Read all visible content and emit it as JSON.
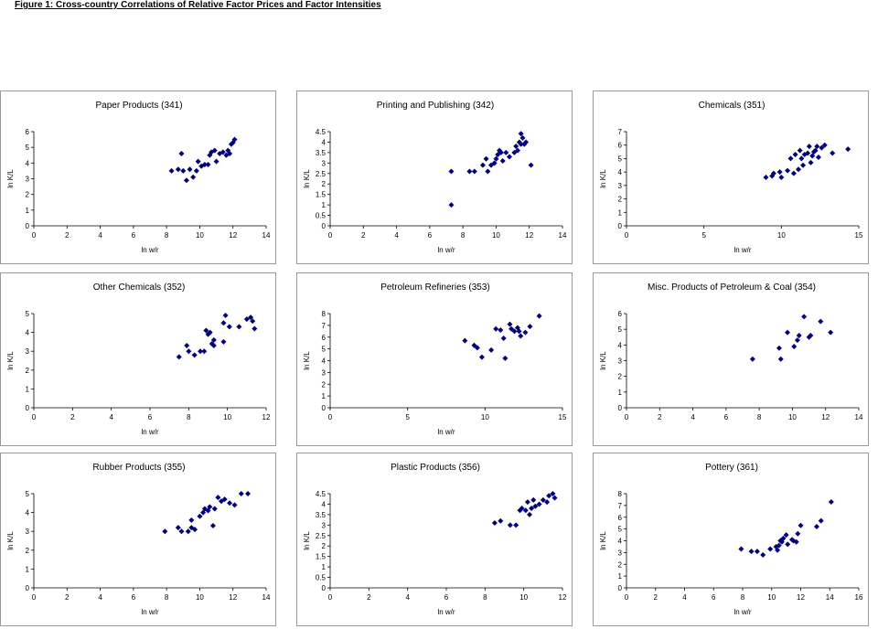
{
  "figure_title": "Figure 1: Cross-country Correlations of Relative Factor Prices and Factor Intensities",
  "marker_color": "#000080",
  "chart_data": [
    {
      "type": "scatter",
      "title": "Paper Products (341)",
      "xlabel": "ln w/r",
      "ylabel": "ln K/L",
      "xlim": [
        0,
        14
      ],
      "ylim": [
        0,
        6
      ],
      "xticks": [
        "0",
        "2",
        "4",
        "6",
        "8",
        "10",
        "12",
        "14"
      ],
      "yticks": [
        "0",
        "1",
        "2",
        "3",
        "4",
        "5",
        "6"
      ],
      "grid": false,
      "legend": "none",
      "points": [
        [
          8.3,
          3.5
        ],
        [
          8.7,
          3.6
        ],
        [
          9.0,
          3.5
        ],
        [
          8.9,
          4.6
        ],
        [
          9.2,
          2.9
        ],
        [
          9.4,
          3.6
        ],
        [
          9.6,
          3.1
        ],
        [
          9.8,
          3.5
        ],
        [
          9.9,
          4.1
        ],
        [
          10.1,
          3.8
        ],
        [
          10.3,
          3.9
        ],
        [
          10.5,
          3.9
        ],
        [
          10.6,
          4.5
        ],
        [
          10.7,
          4.7
        ],
        [
          10.9,
          4.8
        ],
        [
          11.0,
          4.1
        ],
        [
          11.2,
          4.6
        ],
        [
          11.4,
          4.7
        ],
        [
          11.6,
          4.5
        ],
        [
          11.8,
          4.6
        ],
        [
          11.7,
          4.8
        ],
        [
          11.9,
          5.2
        ],
        [
          12.0,
          5.3
        ],
        [
          12.1,
          5.5
        ]
      ]
    },
    {
      "type": "scatter",
      "title": "Printing and Publishing (342)",
      "xlabel": "ln w/r",
      "ylabel": "ln K/L",
      "xlim": [
        0,
        14
      ],
      "ylim": [
        0,
        4.5
      ],
      "xticks": [
        "0",
        "2",
        "4",
        "6",
        "8",
        "10",
        "12",
        "14"
      ],
      "yticks": [
        "0",
        "0.5",
        "1",
        "1.5",
        "2",
        "2.5",
        "3",
        "3.5",
        "4",
        "4.5"
      ],
      "grid": false,
      "legend": "none",
      "points": [
        [
          7.3,
          1.0
        ],
        [
          7.3,
          2.6
        ],
        [
          8.4,
          2.6
        ],
        [
          8.7,
          2.6
        ],
        [
          9.2,
          2.9
        ],
        [
          9.4,
          3.2
        ],
        [
          9.5,
          2.6
        ],
        [
          9.7,
          2.9
        ],
        [
          9.9,
          3.0
        ],
        [
          10.0,
          3.2
        ],
        [
          10.1,
          3.4
        ],
        [
          10.2,
          3.6
        ],
        [
          10.3,
          3.5
        ],
        [
          10.4,
          3.1
        ],
        [
          10.6,
          3.5
        ],
        [
          10.8,
          3.3
        ],
        [
          11.1,
          3.5
        ],
        [
          11.2,
          3.8
        ],
        [
          11.3,
          3.6
        ],
        [
          11.4,
          4.0
        ],
        [
          11.5,
          3.9
        ],
        [
          11.5,
          4.4
        ],
        [
          11.6,
          4.2
        ],
        [
          11.7,
          3.9
        ],
        [
          11.8,
          4.0
        ],
        [
          12.1,
          2.9
        ]
      ]
    },
    {
      "type": "scatter",
      "title": "Chemicals (351)",
      "xlabel": "ln w/r",
      "ylabel": "ln K/L",
      "xlim": [
        0,
        15
      ],
      "ylim": [
        0,
        7
      ],
      "xticks": [
        "0",
        "5",
        "10",
        "15"
      ],
      "yticks": [
        "0",
        "1",
        "2",
        "3",
        "4",
        "5",
        "6",
        "7"
      ],
      "grid": false,
      "legend": "none",
      "points": [
        [
          9.0,
          3.6
        ],
        [
          9.4,
          3.7
        ],
        [
          9.5,
          3.9
        ],
        [
          9.9,
          4.0
        ],
        [
          10.0,
          3.6
        ],
        [
          10.4,
          4.1
        ],
        [
          10.6,
          5.0
        ],
        [
          10.8,
          3.9
        ],
        [
          10.9,
          5.3
        ],
        [
          11.1,
          4.2
        ],
        [
          11.2,
          5.6
        ],
        [
          11.3,
          5.0
        ],
        [
          11.4,
          4.5
        ],
        [
          11.5,
          5.3
        ],
        [
          11.7,
          5.4
        ],
        [
          11.8,
          5.9
        ],
        [
          11.9,
          4.7
        ],
        [
          12.0,
          5.2
        ],
        [
          12.1,
          5.5
        ],
        [
          12.2,
          5.6
        ],
        [
          12.3,
          5.9
        ],
        [
          12.4,
          5.1
        ],
        [
          12.6,
          5.8
        ],
        [
          12.8,
          6.0
        ],
        [
          13.3,
          5.4
        ],
        [
          14.3,
          5.7
        ]
      ]
    },
    {
      "type": "scatter",
      "title": "Other Chemicals (352)",
      "xlabel": "ln w/r",
      "ylabel": "ln K/L",
      "xlim": [
        0,
        12
      ],
      "ylim": [
        0,
        5
      ],
      "xticks": [
        "0",
        "2",
        "4",
        "6",
        "8",
        "10",
        "12"
      ],
      "yticks": [
        "0",
        "1",
        "2",
        "3",
        "4",
        "5"
      ],
      "grid": false,
      "legend": "none",
      "points": [
        [
          7.5,
          2.7
        ],
        [
          7.9,
          3.3
        ],
        [
          8.0,
          3.0
        ],
        [
          8.3,
          2.8
        ],
        [
          8.6,
          3.0
        ],
        [
          8.8,
          3.0
        ],
        [
          8.9,
          4.1
        ],
        [
          9.0,
          3.9
        ],
        [
          9.1,
          4.0
        ],
        [
          9.2,
          3.4
        ],
        [
          9.3,
          3.6
        ],
        [
          9.3,
          3.3
        ],
        [
          9.8,
          3.5
        ],
        [
          9.8,
          4.5
        ],
        [
          9.9,
          4.9
        ],
        [
          10.1,
          4.3
        ],
        [
          10.6,
          4.3
        ],
        [
          11.0,
          4.7
        ],
        [
          11.2,
          4.8
        ],
        [
          11.3,
          4.6
        ],
        [
          11.4,
          4.2
        ]
      ]
    },
    {
      "type": "scatter",
      "title": "Petroleum Refineries (353)",
      "xlabel": "ln w/r",
      "ylabel": "ln K/L",
      "xlim": [
        0,
        15
      ],
      "ylim": [
        0,
        8
      ],
      "xticks": [
        "0",
        "5",
        "10",
        "15"
      ],
      "yticks": [
        "0",
        "1",
        "2",
        "3",
        "4",
        "5",
        "6",
        "7",
        "8"
      ],
      "grid": false,
      "legend": "none",
      "points": [
        [
          8.7,
          5.7
        ],
        [
          9.3,
          5.3
        ],
        [
          9.5,
          5.1
        ],
        [
          9.8,
          4.3
        ],
        [
          10.4,
          4.9
        ],
        [
          10.7,
          6.7
        ],
        [
          11.0,
          6.6
        ],
        [
          11.2,
          5.9
        ],
        [
          11.3,
          4.2
        ],
        [
          11.6,
          7.1
        ],
        [
          11.7,
          6.7
        ],
        [
          11.9,
          6.5
        ],
        [
          12.1,
          6.8
        ],
        [
          12.2,
          6.5
        ],
        [
          12.3,
          6.1
        ],
        [
          12.6,
          6.4
        ],
        [
          12.9,
          6.9
        ],
        [
          13.5,
          7.8
        ]
      ]
    },
    {
      "type": "scatter",
      "title": "Misc. Products of Petroleum & Coal (354)",
      "xlabel": "",
      "ylabel": "ln K/L",
      "xlim": [
        0,
        14
      ],
      "ylim": [
        0,
        6
      ],
      "xticks": [
        "0",
        "2",
        "4",
        "6",
        "8",
        "10",
        "12",
        "14"
      ],
      "yticks": [
        "0",
        "1",
        "2",
        "3",
        "4",
        "5",
        "6"
      ],
      "grid": false,
      "legend": "none",
      "points": [
        [
          7.6,
          3.1
        ],
        [
          9.2,
          3.8
        ],
        [
          9.3,
          3.1
        ],
        [
          9.7,
          4.8
        ],
        [
          10.1,
          3.9
        ],
        [
          10.3,
          4.3
        ],
        [
          10.4,
          4.6
        ],
        [
          10.7,
          5.8
        ],
        [
          11.0,
          4.5
        ],
        [
          11.1,
          4.6
        ],
        [
          11.7,
          5.5
        ],
        [
          12.3,
          4.8
        ]
      ]
    },
    {
      "type": "scatter",
      "title": "Rubber Products (355)",
      "xlabel": "ln w/r",
      "ylabel": "ln K/L",
      "xlim": [
        0,
        14
      ],
      "ylim": [
        0,
        5
      ],
      "xticks": [
        "0",
        "2",
        "4",
        "6",
        "8",
        "10",
        "12",
        "14"
      ],
      "yticks": [
        "0",
        "1",
        "2",
        "3",
        "4",
        "5"
      ],
      "grid": false,
      "legend": "none",
      "points": [
        [
          7.9,
          3.0
        ],
        [
          8.7,
          3.2
        ],
        [
          8.9,
          3.0
        ],
        [
          9.3,
          3.0
        ],
        [
          9.5,
          3.2
        ],
        [
          9.5,
          3.6
        ],
        [
          9.7,
          3.1
        ],
        [
          10.0,
          3.8
        ],
        [
          10.2,
          4.0
        ],
        [
          10.3,
          4.2
        ],
        [
          10.5,
          4.1
        ],
        [
          10.6,
          4.3
        ],
        [
          10.8,
          3.3
        ],
        [
          10.9,
          4.2
        ],
        [
          11.1,
          4.8
        ],
        [
          11.3,
          4.6
        ],
        [
          11.5,
          4.7
        ],
        [
          11.8,
          4.5
        ],
        [
          12.1,
          4.4
        ],
        [
          12.5,
          5.0
        ],
        [
          12.9,
          5.0
        ]
      ]
    },
    {
      "type": "scatter",
      "title": "Plastic Products (356)",
      "xlabel": "ln w/r",
      "ylabel": "ln K/L",
      "xlim": [
        0,
        12
      ],
      "ylim": [
        0,
        4.5
      ],
      "xticks": [
        "0",
        "2",
        "4",
        "6",
        "8",
        "10",
        "12"
      ],
      "yticks": [
        "0",
        "0.5",
        "1",
        "1.5",
        "2",
        "2.5",
        "3",
        "3.5",
        "4",
        "4.5"
      ],
      "grid": false,
      "legend": "none",
      "points": [
        [
          8.5,
          3.1
        ],
        [
          8.8,
          3.2
        ],
        [
          9.3,
          3.0
        ],
        [
          9.6,
          3.0
        ],
        [
          9.8,
          3.7
        ],
        [
          9.9,
          3.8
        ],
        [
          10.1,
          3.7
        ],
        [
          10.2,
          4.1
        ],
        [
          10.3,
          3.5
        ],
        [
          10.4,
          3.8
        ],
        [
          10.5,
          4.2
        ],
        [
          10.6,
          3.9
        ],
        [
          10.8,
          4.0
        ],
        [
          11.0,
          4.2
        ],
        [
          11.2,
          4.1
        ],
        [
          11.3,
          4.4
        ],
        [
          11.5,
          4.5
        ],
        [
          11.6,
          4.3
        ]
      ]
    },
    {
      "type": "scatter",
      "title": "Pottery (361)",
      "xlabel": "ln w/r",
      "ylabel": "ln K/L",
      "xlim": [
        0,
        16
      ],
      "ylim": [
        0,
        8
      ],
      "xticks": [
        "0",
        "2",
        "4",
        "6",
        "8",
        "10",
        "12",
        "14",
        "16"
      ],
      "yticks": [
        "0",
        "1",
        "2",
        "3",
        "4",
        "5",
        "6",
        "7",
        "8"
      ],
      "grid": false,
      "legend": "none",
      "points": [
        [
          7.9,
          3.3
        ],
        [
          8.6,
          3.1
        ],
        [
          9.0,
          3.1
        ],
        [
          9.4,
          2.8
        ],
        [
          9.9,
          3.3
        ],
        [
          10.3,
          3.5
        ],
        [
          10.4,
          3.2
        ],
        [
          10.5,
          3.6
        ],
        [
          10.6,
          4.0
        ],
        [
          10.7,
          3.9
        ],
        [
          10.8,
          4.2
        ],
        [
          11.0,
          4.5
        ],
        [
          11.1,
          3.7
        ],
        [
          11.4,
          4.1
        ],
        [
          11.5,
          4.0
        ],
        [
          11.7,
          3.9
        ],
        [
          11.8,
          4.6
        ],
        [
          12.0,
          5.3
        ],
        [
          13.1,
          5.2
        ],
        [
          13.4,
          5.7
        ],
        [
          14.1,
          7.3
        ]
      ]
    }
  ]
}
